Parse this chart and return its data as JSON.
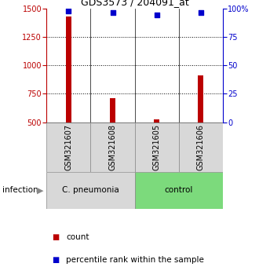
{
  "title": "GDS3573 / 204091_at",
  "samples": [
    "GSM321607",
    "GSM321608",
    "GSM321605",
    "GSM321606"
  ],
  "counts": [
    1430,
    710,
    525,
    910
  ],
  "percentiles": [
    97.5,
    96.5,
    94.5,
    96.5
  ],
  "ylim_left": [
    500,
    1500
  ],
  "ylim_right": [
    0,
    100
  ],
  "yticks_left": [
    500,
    750,
    1000,
    1250,
    1500
  ],
  "yticks_right": [
    0,
    25,
    50,
    75,
    100
  ],
  "ytick_labels_right": [
    "0",
    "25",
    "50",
    "75",
    "100%"
  ],
  "grid_lines": [
    750,
    1000,
    1250
  ],
  "bar_color": "#bb0000",
  "dot_color": "#0000cc",
  "group_labels": [
    "C. pneumonia",
    "control"
  ],
  "group_colors": [
    "#d8d8d8",
    "#7cda7c"
  ],
  "infection_label": "infection",
  "legend_count": "count",
  "legend_pct": "percentile rank within the sample",
  "bar_width": 0.12,
  "title_fontsize": 9,
  "tick_fontsize": 7,
  "legend_fontsize": 7.5
}
